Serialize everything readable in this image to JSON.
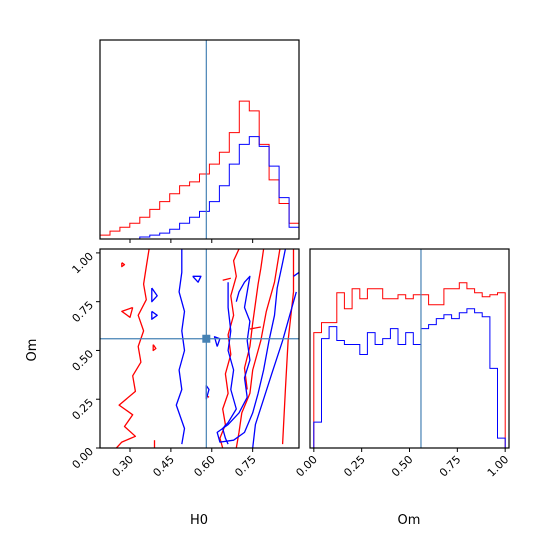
{
  "chart_data": {
    "type": "corner",
    "parameters": [
      "H0",
      "Om"
    ],
    "truth": {
      "H0": 0.58,
      "Om": 0.56
    },
    "colors": {
      "series_a": "#ff0000",
      "series_b": "#0000ff",
      "truth": "#4682b4"
    },
    "panels": [
      {
        "id": "hist-h0",
        "type": "histogram",
        "xlim": [
          0.19,
          0.92
        ],
        "ylim": [
          0,
          100
        ],
        "bin_edges": [
          0.19,
          0.2265,
          0.263,
          0.2995,
          0.336,
          0.3725,
          0.409,
          0.4455,
          0.482,
          0.5185,
          0.555,
          0.5915,
          0.628,
          0.6645,
          0.701,
          0.7375,
          0.774,
          0.8105,
          0.847,
          0.8835,
          0.92
        ],
        "series": [
          {
            "color": "#ff0000",
            "counts": [
              2,
              4,
              6,
              8,
              11,
              15,
              19,
              23,
              27,
              29,
              33,
              38,
              44,
              54,
              70,
              65,
              48,
              30,
              18,
              8
            ]
          },
          {
            "color": "#0000ff",
            "counts": [
              0,
              0,
              0,
              0,
              1,
              2,
              3,
              5,
              8,
              11,
              14,
              19,
              27,
              38,
              48,
              52,
              47,
              37,
              21,
              6
            ]
          }
        ]
      },
      {
        "id": "hist-om",
        "type": "histogram",
        "xlim": [
          -0.02,
          1.02
        ],
        "ylim": [
          0,
          100
        ],
        "bin_edges": [
          0,
          0.04,
          0.08,
          0.12,
          0.16,
          0.2,
          0.24,
          0.28,
          0.32,
          0.36,
          0.4,
          0.44,
          0.48,
          0.52,
          0.56,
          0.6,
          0.64,
          0.68,
          0.72,
          0.76,
          0.8,
          0.84,
          0.88,
          0.92,
          0.96,
          1.0
        ],
        "series": [
          {
            "color": "#ff0000",
            "counts": [
              58,
              63,
              63,
              78,
              70,
              80,
              75,
              80,
              80,
              75,
              75,
              77,
              75,
              77,
              77,
              72,
              72,
              80,
              80,
              83,
              80,
              78,
              76,
              77,
              78
            ]
          },
          {
            "color": "#0000ff",
            "counts": [
              13,
              55,
              61,
              54,
              52,
              52,
              47,
              58,
              52,
              55,
              60,
              52,
              58,
              52,
              60,
              62,
              65,
              67,
              65,
              68,
              70,
              68,
              66,
              40,
              5
            ]
          }
        ]
      },
      {
        "id": "joint-h0-om",
        "type": "contour",
        "xlim": [
          0.19,
          0.92
        ],
        "ylim": [
          0,
          1.02
        ],
        "contours": [
          {
            "color": "#ff0000",
            "points": [
              [
                0.37,
                1.02
              ],
              [
                0.36,
                0.93
              ],
              [
                0.35,
                0.84
              ],
              [
                0.36,
                0.76
              ],
              [
                0.33,
                0.68
              ],
              [
                0.35,
                0.6
              ],
              [
                0.33,
                0.52
              ],
              [
                0.34,
                0.44
              ],
              [
                0.31,
                0.37
              ],
              [
                0.32,
                0.29
              ],
              [
                0.26,
                0.22
              ],
              [
                0.31,
                0.17
              ],
              [
                0.28,
                0.11
              ],
              [
                0.32,
                0.06
              ],
              [
                0.27,
                0.03
              ],
              [
                0.25,
                0.0
              ]
            ]
          },
          {
            "color": "#ff0000",
            "points": [
              [
                0.31,
                0.72
              ],
              [
                0.27,
                0.7
              ],
              [
                0.3,
                0.67
              ],
              [
                0.31,
                0.72
              ]
            ]
          },
          {
            "color": "#ff0000",
            "points": [
              [
                0.27,
                0.95
              ],
              [
                0.28,
                0.94
              ],
              [
                0.27,
                0.93
              ],
              [
                0.27,
                0.95
              ]
            ]
          },
          {
            "color": "#ff0000",
            "points": [
              [
                0.385,
                0.53
              ],
              [
                0.395,
                0.51
              ],
              [
                0.385,
                0.5
              ],
              [
                0.385,
                0.53
              ]
            ]
          },
          {
            "color": "#ff0000",
            "points": [
              [
                0.39,
                0.0
              ],
              [
                0.39,
                0.04
              ]
            ]
          },
          {
            "color": "#ff0000",
            "points": [
              [
                0.64,
                0.0
              ],
              [
                0.63,
                0.05
              ],
              [
                0.65,
                0.12
              ],
              [
                0.64,
                0.2
              ],
              [
                0.66,
                0.28
              ],
              [
                0.65,
                0.38
              ],
              [
                0.67,
                0.48
              ],
              [
                0.66,
                0.58
              ],
              [
                0.68,
                0.68
              ],
              [
                0.67,
                0.78
              ],
              [
                0.69,
                0.88
              ],
              [
                0.68,
                0.96
              ],
              [
                0.7,
                1.02
              ]
            ]
          },
          {
            "color": "#ff0000",
            "points": [
              [
                0.69,
                0.0
              ],
              [
                0.7,
                0.08
              ],
              [
                0.71,
                0.18
              ],
              [
                0.74,
                0.28
              ],
              [
                0.75,
                0.4
              ],
              [
                0.78,
                0.55
              ],
              [
                0.8,
                0.7
              ],
              [
                0.83,
                0.85
              ],
              [
                0.85,
                1.02
              ]
            ]
          },
          {
            "color": "#ff0000",
            "points": [
              [
                0.73,
                0.3
              ],
              [
                0.72,
                0.41
              ],
              [
                0.74,
                0.52
              ],
              [
                0.75,
                0.64
              ],
              [
                0.76,
                0.74
              ],
              [
                0.77,
                0.84
              ],
              [
                0.78,
                0.92
              ],
              [
                0.79,
                1.02
              ]
            ]
          },
          {
            "color": "#ff0000",
            "points": [
              [
                0.64,
                0.86
              ],
              [
                0.67,
                0.87
              ]
            ]
          },
          {
            "color": "#ff0000",
            "points": [
              [
                0.74,
                0.61
              ],
              [
                0.78,
                0.62
              ]
            ]
          },
          {
            "color": "#ff0000",
            "points": [
              [
                0.59,
                0.26
              ],
              [
                0.58,
                0.27
              ]
            ]
          },
          {
            "color": "#ff0000",
            "points": [
              [
                0.86,
                0.02
              ],
              [
                0.87,
                0.3
              ],
              [
                0.88,
                0.55
              ],
              [
                0.9,
                0.8
              ],
              [
                0.9,
                1.02
              ]
            ]
          },
          {
            "color": "#0000ff",
            "points": [
              [
                0.49,
                1.02
              ],
              [
                0.49,
                0.9
              ],
              [
                0.48,
                0.8
              ],
              [
                0.5,
                0.7
              ],
              [
                0.49,
                0.6
              ],
              [
                0.5,
                0.5
              ],
              [
                0.48,
                0.4
              ],
              [
                0.49,
                0.3
              ],
              [
                0.47,
                0.22
              ],
              [
                0.5,
                0.1
              ],
              [
                0.49,
                0.02
              ]
            ]
          },
          {
            "color": "#0000ff",
            "points": [
              [
                0.38,
                0.82
              ],
              [
                0.4,
                0.78
              ],
              [
                0.38,
                0.75
              ],
              [
                0.38,
                0.82
              ]
            ]
          },
          {
            "color": "#0000ff",
            "points": [
              [
                0.38,
                0.7
              ],
              [
                0.4,
                0.68
              ],
              [
                0.38,
                0.66
              ],
              [
                0.38,
                0.7
              ]
            ]
          },
          {
            "color": "#0000ff",
            "points": [
              [
                0.53,
                0.88
              ],
              [
                0.56,
                0.88
              ],
              [
                0.55,
                0.85
              ],
              [
                0.53,
                0.88
              ]
            ]
          },
          {
            "color": "#0000ff",
            "points": [
              [
                0.62,
                0.52
              ],
              [
                0.63,
                0.56
              ],
              [
                0.61,
                0.57
              ],
              [
                0.62,
                0.52
              ]
            ]
          },
          {
            "color": "#0000ff",
            "points": [
              [
                0.58,
                0.25
              ],
              [
                0.59,
                0.3
              ],
              [
                0.58,
                0.32
              ],
              [
                0.58,
                0.25
              ]
            ]
          },
          {
            "color": "#0000ff",
            "points": [
              [
                0.66,
                0.85
              ],
              [
                0.66,
                0.72
              ],
              [
                0.67,
                0.6
              ],
              [
                0.66,
                0.5
              ],
              [
                0.68,
                0.4
              ],
              [
                0.67,
                0.3
              ],
              [
                0.69,
                0.2
              ],
              [
                0.66,
                0.13
              ],
              [
                0.64,
                0.1
              ],
              [
                0.65,
                0.05
              ],
              [
                0.66,
                0.02
              ]
            ]
          },
          {
            "color": "#0000ff",
            "points": [
              [
                0.69,
                0.75
              ],
              [
                0.7,
                0.8
              ],
              [
                0.72,
                0.85
              ],
              [
                0.74,
                0.88
              ],
              [
                0.73,
                0.8
              ],
              [
                0.72,
                0.72
              ],
              [
                0.74,
                0.65
              ],
              [
                0.73,
                0.55
              ],
              [
                0.74,
                0.45
              ],
              [
                0.72,
                0.36
              ],
              [
                0.73,
                0.26
              ],
              [
                0.7,
                0.18
              ],
              [
                0.66,
                0.12
              ],
              [
                0.62,
                0.08
              ],
              [
                0.63,
                0.03
              ],
              [
                0.68,
                0.04
              ],
              [
                0.72,
                0.08
              ],
              [
                0.75,
                0.18
              ],
              [
                0.77,
                0.28
              ],
              [
                0.79,
                0.4
              ],
              [
                0.81,
                0.55
              ],
              [
                0.83,
                0.68
              ],
              [
                0.84,
                0.82
              ],
              [
                0.86,
                0.95
              ],
              [
                0.87,
                1.02
              ]
            ]
          },
          {
            "color": "#0000ff",
            "points": [
              [
                0.75,
                0.0
              ],
              [
                0.76,
                0.12
              ],
              [
                0.79,
                0.25
              ],
              [
                0.82,
                0.38
              ],
              [
                0.86,
                0.55
              ],
              [
                0.89,
                0.7
              ],
              [
                0.91,
                0.8
              ]
            ]
          },
          {
            "color": "#0000ff",
            "points": [
              [
                0.9,
                0.88
              ],
              [
                0.92,
                0.9
              ]
            ]
          }
        ],
        "marker": {
          "x": 0.58,
          "y": 0.56
        }
      }
    ],
    "axes": {
      "h0_ticks": [
        "0.30",
        "0.45",
        "0.60",
        "0.75"
      ],
      "h0_tick_values": [
        0.3,
        0.45,
        0.6,
        0.75
      ],
      "om_ticks": [
        "0.00",
        "0.25",
        "0.50",
        "0.75",
        "1.00"
      ],
      "om_tick_values": [
        0.0,
        0.25,
        0.5,
        0.75,
        1.0
      ],
      "xlabel_joint": "H0",
      "ylabel_joint": "Om",
      "xlabel_om": "Om"
    }
  }
}
